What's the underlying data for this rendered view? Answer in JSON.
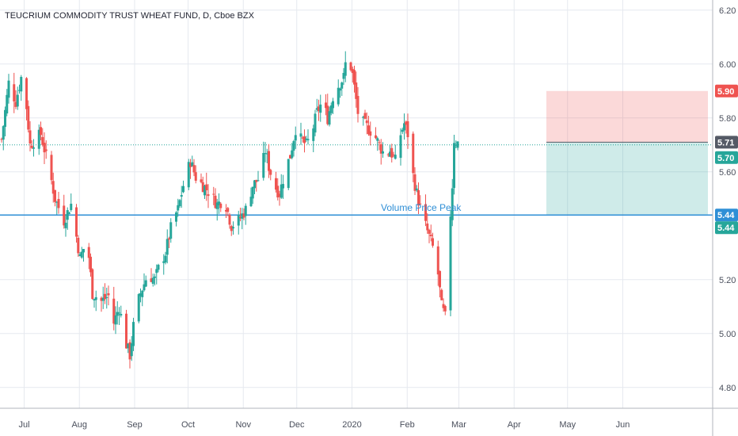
{
  "chart_data": {
    "type": "candlestick",
    "title": "TEUCRIUM COMMODITY TRUST WHEAT FUND, D, Cboe BZX",
    "ylim": [
      4.75,
      6.22
    ],
    "y_ticks": [
      6.2,
      6.0,
      5.8,
      5.6,
      5.2,
      5.0,
      4.8
    ],
    "y_tick_labels": [
      "6.20",
      "6.00",
      "5.80",
      "5.60",
      "5.20",
      "5.00",
      "4.80"
    ],
    "x_tick_labels": [
      "Jul",
      "Aug",
      "Sep",
      "Oct",
      "Nov",
      "Dec",
      "2020",
      "Feb",
      "Mar",
      "Apr",
      "May",
      "Jun"
    ],
    "x_tick_days": [
      10,
      41,
      72,
      102,
      133,
      163,
      194,
      225,
      254,
      285,
      315,
      346
    ],
    "grid": true,
    "colors": {
      "up": "#26a69a",
      "down": "#ef5350",
      "line": "#2f8fd6",
      "grid": "#e6e9ef"
    },
    "anchors": [
      [
        0,
        5.72
      ],
      [
        4,
        5.93
      ],
      [
        8,
        5.86
      ],
      [
        12,
        5.98
      ],
      [
        16,
        5.7
      ],
      [
        22,
        5.74
      ],
      [
        27,
        5.6
      ],
      [
        30,
        5.5
      ],
      [
        35,
        5.42
      ],
      [
        39,
        5.48
      ],
      [
        44,
        5.28
      ],
      [
        48,
        5.35
      ],
      [
        51,
        5.15
      ],
      [
        56,
        5.12
      ],
      [
        60,
        5.14
      ],
      [
        63,
        5.04
      ],
      [
        66,
        5.1
      ],
      [
        70,
        4.96
      ],
      [
        72,
        4.92
      ],
      [
        75,
        5.08
      ],
      [
        78,
        5.15
      ],
      [
        82,
        5.22
      ],
      [
        86,
        5.2
      ],
      [
        89,
        5.26
      ],
      [
        92,
        5.3
      ],
      [
        96,
        5.42
      ],
      [
        99,
        5.46
      ],
      [
        102,
        5.55
      ],
      [
        106,
        5.64
      ],
      [
        109,
        5.58
      ],
      [
        113,
        5.55
      ],
      [
        117,
        5.52
      ],
      [
        121,
        5.48
      ],
      [
        125,
        5.5
      ],
      [
        129,
        5.4
      ],
      [
        133,
        5.42
      ],
      [
        137,
        5.46
      ],
      [
        141,
        5.55
      ],
      [
        145,
        5.58
      ],
      [
        148,
        5.68
      ],
      [
        150,
        5.62
      ],
      [
        153,
        5.55
      ],
      [
        156,
        5.52
      ],
      [
        159,
        5.6
      ],
      [
        162,
        5.66
      ],
      [
        165,
        5.76
      ],
      [
        168,
        5.72
      ],
      [
        171,
        5.7
      ],
      [
        174,
        5.74
      ],
      [
        177,
        5.82
      ],
      [
        180,
        5.86
      ],
      [
        183,
        5.8
      ],
      [
        186,
        5.88
      ],
      [
        189,
        5.92
      ],
      [
        192,
        5.95
      ],
      [
        194,
        6.05
      ],
      [
        197,
        5.96
      ],
      [
        200,
        5.82
      ],
      [
        203,
        5.78
      ],
      [
        206,
        5.76
      ],
      [
        209,
        5.74
      ],
      [
        212,
        5.7
      ],
      [
        215,
        5.66
      ],
      [
        218,
        5.68
      ],
      [
        221,
        5.64
      ],
      [
        223,
        5.72
      ],
      [
        226,
        5.78
      ],
      [
        228,
        5.74
      ],
      [
        230,
        5.62
      ],
      [
        233,
        5.52
      ],
      [
        236,
        5.44
      ],
      [
        239,
        5.38
      ],
      [
        242,
        5.32
      ],
      [
        245,
        5.22
      ],
      [
        247,
        5.1
      ],
      [
        249,
        5.06
      ],
      [
        251,
        5.34
      ],
      [
        253,
        5.55
      ],
      [
        254,
        5.72
      ],
      [
        257,
        5.7
      ]
    ],
    "annotations": {
      "line_label": "Volume Price Peak",
      "support_price": 5.44,
      "entry_price": 5.71,
      "target_price": 5.9,
      "stop_price": 5.44,
      "dotted_line_price": 5.7
    },
    "price_badges": [
      {
        "label": "5.90",
        "price": 5.9,
        "color": "#ef5350"
      },
      {
        "label": "5.71",
        "price": 5.71,
        "color": "#555a66"
      },
      {
        "label": "5.70",
        "price": 5.7,
        "color": "#26a69a"
      },
      {
        "label": "5.44",
        "price": 5.44,
        "color": "#2f8fd6"
      },
      {
        "label": "5.44",
        "price": 5.44,
        "color": "#26a69a"
      }
    ]
  }
}
